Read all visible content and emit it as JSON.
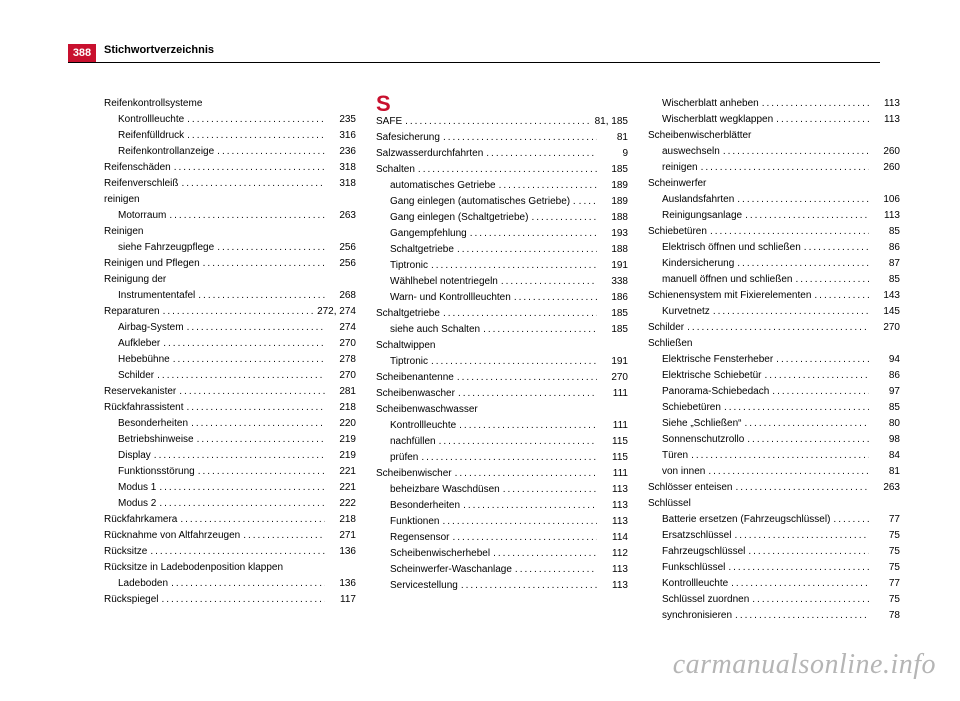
{
  "page_number_box": {
    "bg": "#c8102e",
    "fg": "#ffffff",
    "text": "388"
  },
  "section_letter_color": "#c8102e",
  "header_title": "Stichwortverzeichnis",
  "watermark": "carmanualsonline.info",
  "cols": [
    [
      {
        "label": "Reifenkontrollsysteme",
        "noPage": true
      },
      {
        "label": "Kontrollleuchte",
        "page": "235",
        "sub": true
      },
      {
        "label": "Reifenfülldruck",
        "page": "316",
        "sub": true
      },
      {
        "label": "Reifenkontrollanzeige",
        "page": "236",
        "sub": true
      },
      {
        "label": "Reifenschäden",
        "page": "318"
      },
      {
        "label": "Reifenverschleiß",
        "page": "318"
      },
      {
        "label": "reinigen",
        "noPage": true
      },
      {
        "label": "Motorraum",
        "page": "263",
        "sub": true
      },
      {
        "label": "Reinigen",
        "noPage": true
      },
      {
        "label": "siehe Fahrzeugpflege",
        "page": "256",
        "sub": true
      },
      {
        "label": "Reinigen und Pflegen",
        "page": "256"
      },
      {
        "label": "Reinigung der",
        "noPage": true
      },
      {
        "label": "Instrumententafel",
        "page": "268",
        "sub": true
      },
      {
        "label": "Reparaturen",
        "page": "272, 274"
      },
      {
        "label": "Airbag-System",
        "page": "274",
        "sub": true
      },
      {
        "label": "Aufkleber",
        "page": "270",
        "sub": true
      },
      {
        "label": "Hebebühne",
        "page": "278",
        "sub": true
      },
      {
        "label": "Schilder",
        "page": "270",
        "sub": true
      },
      {
        "label": "Reservekanister",
        "page": "281"
      },
      {
        "label": "Rückfahrassistent",
        "page": "218"
      },
      {
        "label": "Besonderheiten",
        "page": "220",
        "sub": true
      },
      {
        "label": "Betriebshinweise",
        "page": "219",
        "sub": true
      },
      {
        "label": "Display",
        "page": "219",
        "sub": true
      },
      {
        "label": "Funktionsstörung",
        "page": "221",
        "sub": true
      },
      {
        "label": "Modus 1",
        "page": "221",
        "sub": true
      },
      {
        "label": "Modus 2",
        "page": "222",
        "sub": true
      },
      {
        "label": "Rückfahrkamera",
        "page": "218"
      },
      {
        "label": "Rücknahme von Altfahrzeugen",
        "page": "271"
      },
      {
        "label": "Rücksitze",
        "page": "136"
      },
      {
        "label": "Rücksitze in Ladebodenposition klappen",
        "noPage": true
      },
      {
        "label": "Ladeboden",
        "page": "136",
        "sub": true
      },
      {
        "label": "Rückspiegel",
        "page": "117"
      }
    ],
    [
      {
        "letter": "S"
      },
      {
        "label": "SAFE",
        "page": "81, 185"
      },
      {
        "label": "Safesicherung",
        "page": "81"
      },
      {
        "label": "Salzwasserdurchfahrten",
        "page": "9"
      },
      {
        "label": "Schalten",
        "page": "185"
      },
      {
        "label": "automatisches Getriebe",
        "page": "189",
        "sub": true
      },
      {
        "label": "Gang einlegen (automatisches Getriebe) .",
        "page": "189",
        "sub": true
      },
      {
        "label": "Gang einlegen (Schaltgetriebe)",
        "page": "188",
        "sub": true
      },
      {
        "label": "Gangempfehlung",
        "page": "193",
        "sub": true
      },
      {
        "label": "Schaltgetriebe",
        "page": "188",
        "sub": true
      },
      {
        "label": "Tiptronic",
        "page": "191",
        "sub": true
      },
      {
        "label": "Wählhebel notentriegeln",
        "page": "338",
        "sub": true
      },
      {
        "label": "Warn- und Kontrollleuchten",
        "page": "186",
        "sub": true
      },
      {
        "label": "Schaltgetriebe",
        "page": "185"
      },
      {
        "label": "siehe auch Schalten",
        "page": "185",
        "sub": true
      },
      {
        "label": "Schaltwippen",
        "noPage": true
      },
      {
        "label": "Tiptronic",
        "page": "191",
        "sub": true
      },
      {
        "label": "Scheibenantenne",
        "page": "270"
      },
      {
        "label": "Scheibenwascher",
        "page": "111"
      },
      {
        "label": "Scheibenwaschwasser",
        "noPage": true
      },
      {
        "label": "Kontrollleuchte",
        "page": "111",
        "sub": true
      },
      {
        "label": "nachfüllen",
        "page": "115",
        "sub": true
      },
      {
        "label": "prüfen",
        "page": "115",
        "sub": true
      },
      {
        "label": "Scheibenwischer",
        "page": "111"
      },
      {
        "label": "beheizbare Waschdüsen",
        "page": "113",
        "sub": true
      },
      {
        "label": "Besonderheiten",
        "page": "113",
        "sub": true
      },
      {
        "label": "Funktionen",
        "page": "113",
        "sub": true
      },
      {
        "label": "Regensensor",
        "page": "114",
        "sub": true
      },
      {
        "label": "Scheibenwischerhebel",
        "page": "112",
        "sub": true
      },
      {
        "label": "Scheinwerfer-Waschanlage",
        "page": "113",
        "sub": true
      },
      {
        "label": "Servicestellung",
        "page": "113",
        "sub": true
      }
    ],
    [
      {
        "label": "Wischerblatt anheben",
        "page": "113",
        "sub": true
      },
      {
        "label": "Wischerblatt wegklappen",
        "page": "113",
        "sub": true
      },
      {
        "label": "Scheibenwischerblätter",
        "noPage": true
      },
      {
        "label": "auswechseln",
        "page": "260",
        "sub": true
      },
      {
        "label": "reinigen",
        "page": "260",
        "sub": true
      },
      {
        "label": "Scheinwerfer",
        "noPage": true
      },
      {
        "label": "Auslandsfahrten",
        "page": "106",
        "sub": true
      },
      {
        "label": "Reinigungsanlage",
        "page": "113",
        "sub": true
      },
      {
        "label": "Schiebetüren",
        "page": "85"
      },
      {
        "label": "Elektrisch öffnen und schließen",
        "page": "86",
        "sub": true
      },
      {
        "label": "Kindersicherung",
        "page": "87",
        "sub": true
      },
      {
        "label": "manuell öffnen und schließen",
        "page": "85",
        "sub": true
      },
      {
        "label": "Schienensystem mit Fixierelementen",
        "page": "143"
      },
      {
        "label": "Kurvetnetz",
        "page": "145",
        "sub": true
      },
      {
        "label": "Schilder",
        "page": "270"
      },
      {
        "label": "Schließen",
        "noPage": true
      },
      {
        "label": "Elektrische Fensterheber",
        "page": "94",
        "sub": true
      },
      {
        "label": "Elektrische Schiebetür",
        "page": "86",
        "sub": true
      },
      {
        "label": "Panorama-Schiebedach",
        "page": "97",
        "sub": true
      },
      {
        "label": "Schiebetüren",
        "page": "85",
        "sub": true
      },
      {
        "label": "Siehe „Schließen“",
        "page": "80",
        "sub": true
      },
      {
        "label": "Sonnenschutzrollo",
        "page": "98",
        "sub": true
      },
      {
        "label": "Türen",
        "page": "84",
        "sub": true
      },
      {
        "label": "von innen",
        "page": "81",
        "sub": true
      },
      {
        "label": "Schlösser enteisen",
        "page": "263"
      },
      {
        "label": "Schlüssel",
        "noPage": true
      },
      {
        "label": "Batterie ersetzen (Fahrzeugschlüssel)",
        "page": "77",
        "sub": true
      },
      {
        "label": "Ersatzschlüssel",
        "page": "75",
        "sub": true
      },
      {
        "label": "Fahrzeugschlüssel",
        "page": "75",
        "sub": true
      },
      {
        "label": "Funkschlüssel",
        "page": "75",
        "sub": true
      },
      {
        "label": "Kontrollleuchte",
        "page": "77",
        "sub": true
      },
      {
        "label": "Schlüssel zuordnen",
        "page": "75",
        "sub": true
      },
      {
        "label": "synchronisieren",
        "page": "78",
        "sub": true
      }
    ]
  ]
}
